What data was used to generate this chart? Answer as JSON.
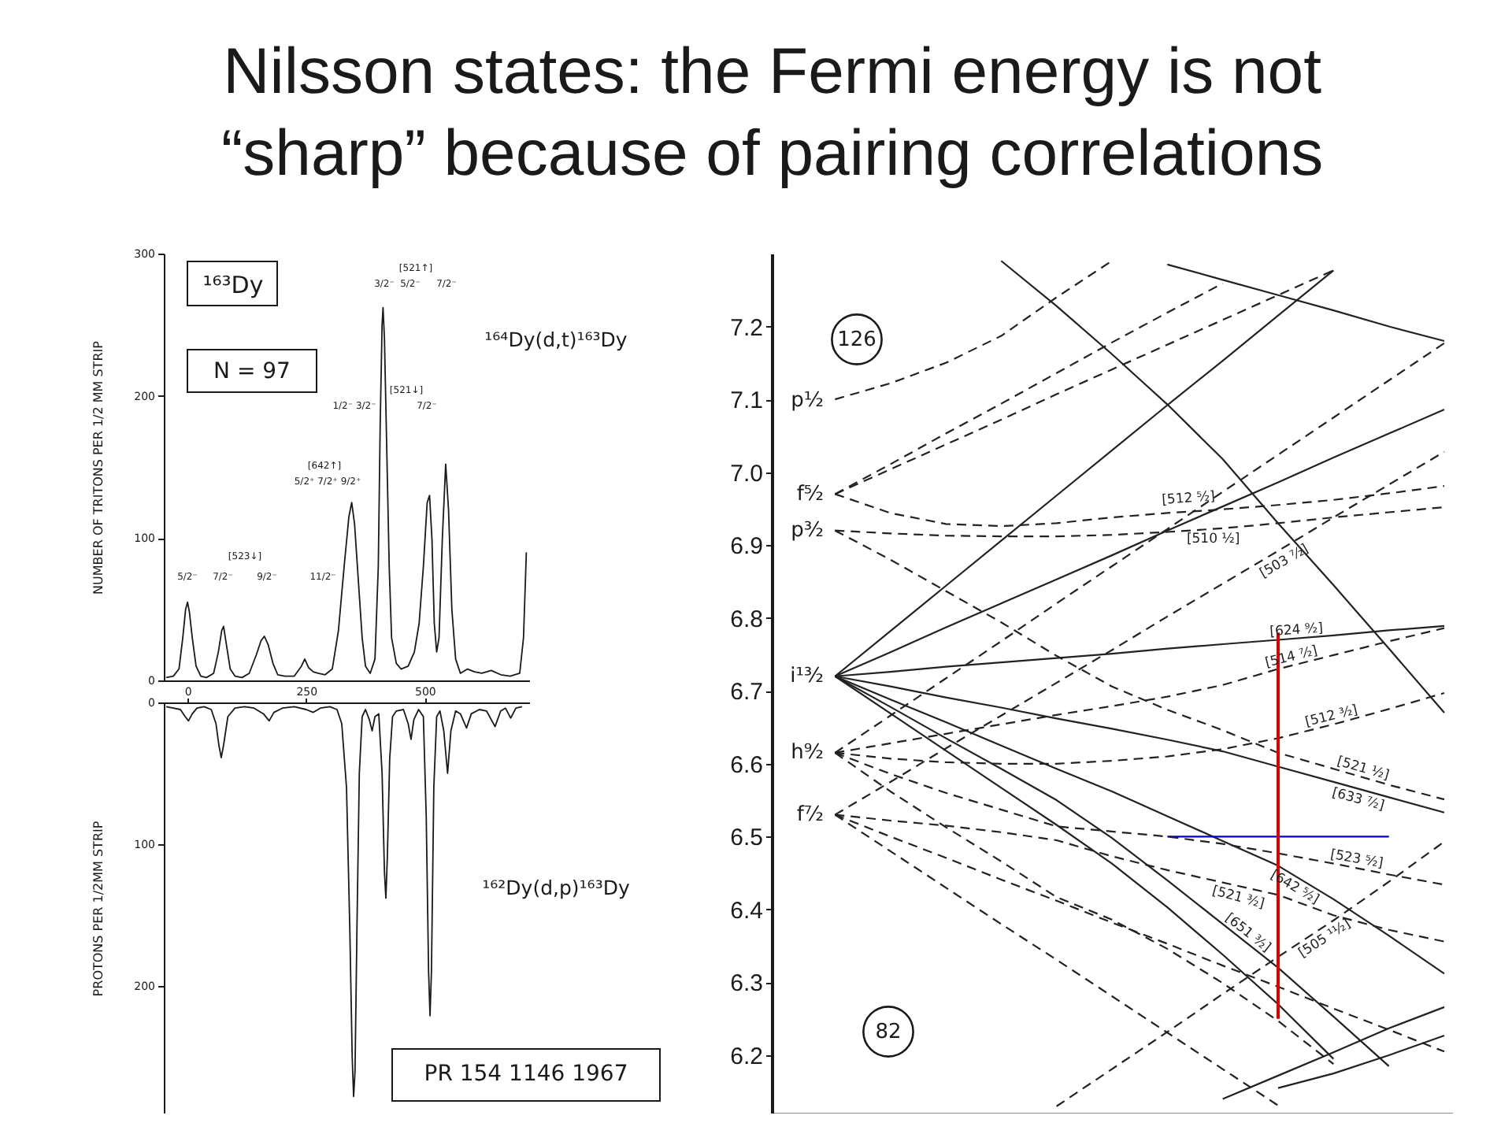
{
  "chart_data": [
    {
      "type": "line",
      "title": "Nilsson states: the Fermi energy is not\n“sharp” because of pairing correlations",
      "ylabel": "NUMBER OF TRITONS PER 1/2 MM STRIP",
      "xlim": [
        -50,
        720
      ],
      "ylim": [
        0,
        300
      ],
      "yticks": [
        0,
        100,
        200,
        300
      ],
      "tick_labels": "y",
      "x": [
        -45,
        -30,
        -18,
        -10,
        -4,
        0,
        4,
        10,
        18,
        28,
        40,
        55,
        65,
        72,
        76,
        82,
        90,
        100,
        115,
        130,
        145,
        155,
        162,
        170,
        180,
        190,
        205,
        225,
        240,
        247,
        255,
        265,
        275,
        290,
        305,
        318,
        330,
        340,
        346,
        352,
        360,
        368,
        375,
        385,
        395,
        402,
        406,
        410,
        412,
        415,
        420,
        425,
        430,
        440,
        450,
        465,
        478,
        488,
        497,
        505,
        510,
        515,
        520,
        525,
        530,
        537,
        544,
        550,
        557,
        565,
        575,
        590,
        605,
        620,
        640,
        660,
        680,
        700,
        708,
        714
      ],
      "series": [
        {
          "name": "¹⁶⁴Dy(d,t)¹⁶³Dy",
          "color": "#1a1a1a",
          "values": [
            2,
            3,
            8,
            30,
            50,
            55,
            48,
            30,
            10,
            3,
            2,
            5,
            20,
            35,
            38,
            25,
            8,
            3,
            2,
            5,
            18,
            28,
            31,
            25,
            12,
            4,
            3,
            3,
            10,
            15,
            9,
            6,
            5,
            4,
            8,
            35,
            80,
            115,
            125,
            110,
            70,
            30,
            10,
            5,
            15,
            80,
            180,
            250,
            262,
            240,
            160,
            80,
            30,
            12,
            8,
            10,
            20,
            40,
            80,
            125,
            130,
            100,
            40,
            20,
            30,
            100,
            152,
            120,
            50,
            15,
            5,
            8,
            6,
            5,
            7,
            4,
            3,
            5,
            30,
            90
          ]
        }
      ],
      "annotations": [
        "¹⁶³Dy",
        "N = 97",
        "[523↓]",
        "5/2⁻",
        "7/2⁻",
        "9/2⁻",
        "11/2⁻",
        "[642↑]",
        "5/2⁺ 7/2⁺ 9/2⁺",
        "[521↓]",
        "1/2⁻ 3/2⁻",
        "7/2⁻",
        "[521↑]",
        "3/2⁻",
        "5/2⁻",
        "7/2⁻"
      ]
    },
    {
      "type": "line",
      "ylabel": "PROTONS PER 1/2MM STRIP",
      "xlim": [
        -50,
        720
      ],
      "ylim": [
        290,
        0
      ],
      "xticks": [
        0,
        250,
        500
      ],
      "yticks": [
        0,
        100,
        200
      ],
      "x": [
        -45,
        -30,
        -15,
        -5,
        2,
        10,
        20,
        35,
        50,
        60,
        66,
        71,
        76,
        85,
        100,
        120,
        140,
        160,
        172,
        182,
        200,
        225,
        250,
        265,
        280,
        300,
        315,
        325,
        335,
        342,
        347,
        350,
        353,
        357,
        362,
        368,
        375,
        383,
        389,
        395,
        403,
        410,
        415,
        418,
        421,
        426,
        432,
        440,
        455,
        465,
        471,
        477,
        487,
        497,
        503,
        508,
        511,
        514,
        519,
        525,
        532,
        540,
        548,
        555,
        565,
        575,
        588,
        598,
        615,
        630,
        648,
        660,
        670,
        681,
        692,
        705
      ],
      "series": [
        {
          "name": "¹⁶²Dy(d,p)¹⁶³Dy",
          "color": "#1a1a1a",
          "values": [
            3,
            4,
            5,
            10,
            13,
            8,
            4,
            3,
            5,
            15,
            30,
            39,
            30,
            10,
            4,
            3,
            4,
            8,
            13,
            7,
            4,
            3,
            5,
            7,
            4,
            3,
            5,
            15,
            60,
            160,
            250,
            278,
            260,
            160,
            50,
            10,
            5,
            12,
            20,
            10,
            8,
            50,
            120,
            138,
            110,
            40,
            10,
            6,
            5,
            15,
            26,
            12,
            5,
            10,
            80,
            190,
            221,
            190,
            60,
            10,
            6,
            20,
            50,
            20,
            6,
            8,
            18,
            8,
            5,
            6,
            17,
            6,
            4,
            11,
            4,
            3
          ]
        }
      ],
      "annotations": [
        "PR 154  1146  1967"
      ]
    },
    {
      "type": "line",
      "categories": [
        null,
        null,
        null,
        null,
        null,
        null,
        null,
        null,
        null,
        null,
        null,
        null,
        null
      ],
      "ylim": [
        6.12,
        7.3
      ],
      "yticks": [
        6.2,
        6.3,
        6.4,
        6.5,
        6.6,
        6.7,
        6.8,
        6.9,
        {
          "value": 7.0,
          "label": "7.0"
        },
        7.1,
        7.2
      ],
      "series": [
        {
          "color": "#222222",
          "values": [
            null,
            6.72,
            6.782,
            6.844,
            6.906,
            6.968,
            7.03,
            7.092,
            7.153,
            7.215,
            7.277,
            null,
            null
          ]
        },
        {
          "color": "#222222",
          "values": [
            null,
            6.72,
            6.753,
            6.787,
            6.82,
            6.853,
            6.886,
            6.92,
            6.953,
            6.986,
            7.02,
            7.053,
            7.086
          ]
        },
        {
          "name": "[624 ⁹⁄₂]",
          "color": "#222222",
          "values": [
            null,
            6.72,
            6.726,
            6.733,
            6.739,
            6.745,
            6.751,
            6.758,
            6.764,
            6.77,
            6.776,
            6.783,
            6.789
          ]
        },
        {
          "name": "[633 ⁷⁄₂]",
          "color": "#222222",
          "values": [
            null,
            6.72,
            6.706,
            6.691,
            6.677,
            6.662,
            6.648,
            6.633,
            6.617,
            6.596,
            6.575,
            6.554,
            6.533
          ]
        },
        {
          "name": "[642 ⁵⁄₂]",
          "color": "#222222",
          "values": [
            null,
            6.72,
            6.688,
            6.657,
            6.625,
            6.593,
            6.562,
            6.528,
            6.494,
            6.46,
            6.414,
            6.364,
            6.312
          ]
        },
        {
          "name": "[651 ³⁄₂]",
          "color": "#222222",
          "values": [
            null,
            6.72,
            6.678,
            6.635,
            6.593,
            6.55,
            6.498,
            6.44,
            6.38,
            6.32,
            6.253,
            6.185,
            null
          ]
        },
        {
          "color": "#222222",
          "values": [
            null,
            6.72,
            6.669,
            6.618,
            6.567,
            6.516,
            6.463,
            6.403,
            6.338,
            6.27,
            6.195,
            null,
            null
          ]
        },
        {
          "color": "#222222",
          "values": [
            null,
            null,
            null,
            null,
            7.29,
            7.228,
            7.162,
            7.093,
            7.018,
            6.93,
            6.845,
            6.758,
            6.67
          ]
        },
        {
          "color": "#222222",
          "values": [
            null,
            null,
            null,
            null,
            null,
            null,
            null,
            7.285,
            7.264,
            7.243,
            7.222,
            7.2,
            7.18
          ]
        },
        {
          "color": "#222222",
          "values": [
            null,
            null,
            null,
            null,
            null,
            null,
            null,
            null,
            6.14,
            6.172,
            6.204,
            6.237,
            6.266
          ]
        },
        {
          "color": "#222222",
          "values": [
            null,
            null,
            null,
            null,
            null,
            null,
            null,
            null,
            null,
            6.155,
            6.175,
            6.2,
            6.227
          ]
        },
        {
          "color": "#222222",
          "line_style": "dashed",
          "values": [
            null,
            7.1,
            7.122,
            7.15,
            7.187,
            7.24,
            7.29,
            null,
            null,
            null,
            null,
            null,
            null
          ]
        },
        {
          "color": "#222222",
          "line_style": "dashed",
          "values": [
            null,
            6.97,
            7.011,
            7.053,
            7.094,
            7.136,
            7.178,
            7.219,
            7.259,
            null,
            null,
            null,
            null
          ]
        },
        {
          "color": "#222222",
          "line_style": "dashed",
          "values": [
            null,
            6.97,
            7.004,
            7.038,
            7.072,
            7.107,
            7.141,
            7.175,
            7.209,
            7.243,
            7.277,
            null,
            null
          ]
        },
        {
          "name": "[512 ⁵⁄₂]",
          "color": "#222222",
          "line_style": "dashed",
          "values": [
            null,
            6.97,
            6.944,
            6.929,
            6.926,
            6.93,
            6.938,
            6.944,
            6.949,
            6.955,
            6.962,
            6.971,
            6.981
          ]
        },
        {
          "name": "[510 ¹⁄₂]",
          "color": "#222222",
          "line_style": "dashed",
          "values": [
            null,
            6.92,
            6.916,
            6.913,
            6.912,
            6.912,
            6.914,
            6.918,
            6.923,
            6.93,
            6.938,
            6.945,
            6.952
          ]
        },
        {
          "name": "[521 ¹⁄₂]",
          "color": "#222222",
          "line_style": "dashed",
          "values": [
            null,
            6.92,
            6.88,
            6.837,
            6.794,
            6.748,
            6.706,
            6.674,
            6.646,
            6.615,
            6.593,
            6.571,
            6.551
          ]
        },
        {
          "color": "#222222",
          "line_style": "dashed",
          "values": [
            null,
            6.615,
            6.666,
            6.717,
            6.768,
            6.82,
            6.871,
            6.922,
            6.973,
            7.024,
            7.075,
            7.126,
            7.177
          ]
        },
        {
          "name": "[514 ⁷⁄₂]",
          "color": "#222222",
          "line_style": "dashed",
          "values": [
            null,
            6.615,
            6.628,
            6.641,
            6.654,
            6.667,
            6.679,
            6.692,
            6.708,
            6.73,
            6.749,
            6.768,
            6.786
          ]
        },
        {
          "name": "[512 ³⁄₂]",
          "color": "#222222",
          "line_style": "dashed",
          "values": [
            null,
            6.615,
            6.607,
            6.602,
            6.6,
            6.6,
            6.604,
            6.61,
            6.62,
            6.635,
            6.654,
            6.675,
            6.697
          ]
        },
        {
          "name": "[503 ⁷⁄₂]",
          "color": "#222222",
          "line_style": "dashed",
          "values": [
            null,
            6.53,
            6.575,
            6.621,
            6.666,
            6.711,
            6.756,
            6.802,
            6.847,
            6.892,
            6.938,
            6.983,
            7.028
          ]
        },
        {
          "name": "[523 ⁵⁄₂]",
          "color": "#222222",
          "line_style": "dashed",
          "values": [
            null,
            6.615,
            6.586,
            6.56,
            6.537,
            6.514,
            6.507,
            6.5,
            6.49,
            6.477,
            6.463,
            6.448,
            6.434
          ]
        },
        {
          "name": "[521 ³⁄₂]",
          "color": "#222222",
          "line_style": "dashed",
          "values": [
            null,
            6.53,
            6.522,
            6.515,
            6.506,
            6.495,
            6.473,
            6.454,
            6.437,
            6.42,
            6.392,
            6.372,
            6.356
          ]
        },
        {
          "color": "#222222",
          "line_style": "dashed",
          "values": [
            null,
            6.615,
            6.562,
            6.513,
            6.466,
            6.417,
            6.386,
            6.346,
            6.299,
            6.247,
            6.188,
            null,
            null
          ]
        },
        {
          "color": "#222222",
          "line_style": "dashed",
          "values": [
            null,
            6.53,
            6.5,
            6.471,
            6.441,
            6.412,
            6.382,
            6.353,
            6.323,
            6.294,
            6.264,
            6.235,
            6.205
          ]
        },
        {
          "color": "#222222",
          "line_style": "dashed",
          "values": [
            null,
            6.53,
            6.48,
            6.43,
            6.38,
            6.331,
            6.281,
            6.231,
            6.181,
            6.131,
            null,
            null,
            null
          ]
        },
        {
          "name": "[505 ¹¹⁄₂]",
          "color": "#222222",
          "line_style": "dashed",
          "values": [
            null,
            null,
            null,
            null,
            null,
            6.13,
            6.181,
            6.232,
            6.284,
            6.335,
            6.385,
            6.438,
            6.493
          ]
        },
        {
          "color": "#0000cc",
          "values": [
            null,
            null,
            null,
            null,
            null,
            null,
            null,
            6.5,
            6.5,
            6.5,
            6.5,
            6.5,
            null
          ]
        },
        {
          "type": "bar",
          "color": "#e00000",
          "base": [
            null,
            null,
            null,
            null,
            null,
            null,
            null,
            null,
            null,
            6.25,
            null,
            null,
            null
          ],
          "values": [
            null,
            null,
            null,
            null,
            null,
            null,
            null,
            null,
            null,
            0.53,
            null,
            null,
            null
          ]
        }
      ],
      "annotations": [
        "p¹⁄₂",
        "f⁵⁄₂",
        "p³⁄₂",
        "i¹³⁄₂",
        "h⁹⁄₂",
        "f⁷⁄₂",
        "126",
        "82"
      ]
    }
  ]
}
